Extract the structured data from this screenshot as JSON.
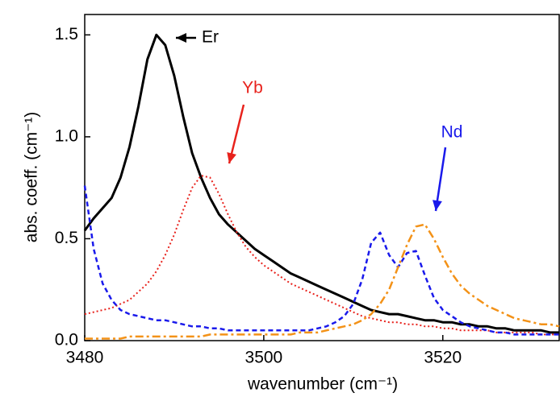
{
  "chart_data": {
    "type": "line",
    "x_label": "wavenumber (cm⁻¹)",
    "y_label": "abs. coeff. (cm⁻¹)",
    "x": [
      3480,
      3481,
      3482,
      3483,
      3484,
      3485,
      3486,
      3487,
      3488,
      3489,
      3490,
      3491,
      3492,
      3493,
      3494,
      3495,
      3496,
      3497,
      3498,
      3499,
      3500,
      3501,
      3502,
      3503,
      3504,
      3505,
      3506,
      3507,
      3508,
      3509,
      3510,
      3511,
      3512,
      3513,
      3514,
      3515,
      3516,
      3517,
      3518,
      3519,
      3520,
      3521,
      3522,
      3523,
      3524,
      3525,
      3526,
      3527,
      3528,
      3529,
      3530,
      3531,
      3532,
      3533
    ],
    "series": [
      {
        "name": "Er",
        "color": "#000000",
        "style": "solid",
        "values": [
          0.54,
          0.6,
          0.65,
          0.7,
          0.8,
          0.95,
          1.15,
          1.38,
          1.5,
          1.45,
          1.3,
          1.1,
          0.92,
          0.8,
          0.7,
          0.62,
          0.57,
          0.53,
          0.49,
          0.45,
          0.42,
          0.39,
          0.36,
          0.33,
          0.31,
          0.29,
          0.27,
          0.25,
          0.23,
          0.21,
          0.19,
          0.17,
          0.15,
          0.14,
          0.13,
          0.13,
          0.12,
          0.11,
          0.1,
          0.1,
          0.09,
          0.09,
          0.08,
          0.08,
          0.07,
          0.07,
          0.06,
          0.06,
          0.05,
          0.05,
          0.05,
          0.05,
          0.04,
          0.04
        ]
      },
      {
        "name": "Yb",
        "color": "#e8221c",
        "style": "dotted",
        "values": [
          0.13,
          0.14,
          0.15,
          0.16,
          0.18,
          0.2,
          0.24,
          0.28,
          0.34,
          0.42,
          0.52,
          0.64,
          0.75,
          0.81,
          0.8,
          0.72,
          0.62,
          0.53,
          0.46,
          0.41,
          0.37,
          0.34,
          0.31,
          0.28,
          0.26,
          0.24,
          0.22,
          0.2,
          0.18,
          0.16,
          0.14,
          0.12,
          0.11,
          0.1,
          0.09,
          0.09,
          0.08,
          0.08,
          0.07,
          0.07,
          0.06,
          0.06,
          0.05,
          0.05,
          0.05,
          0.05,
          0.04,
          0.04,
          0.04,
          0.04,
          0.04,
          0.03,
          0.03,
          0.03
        ]
      },
      {
        "name": "Nd",
        "color": "#1a1aeb",
        "style": "dashed",
        "values": [
          0.76,
          0.45,
          0.28,
          0.2,
          0.15,
          0.13,
          0.12,
          0.11,
          0.1,
          0.1,
          0.09,
          0.08,
          0.07,
          0.07,
          0.06,
          0.06,
          0.05,
          0.05,
          0.05,
          0.05,
          0.05,
          0.05,
          0.05,
          0.05,
          0.05,
          0.05,
          0.06,
          0.07,
          0.09,
          0.12,
          0.18,
          0.3,
          0.48,
          0.53,
          0.42,
          0.36,
          0.43,
          0.44,
          0.32,
          0.21,
          0.15,
          0.12,
          0.09,
          0.07,
          0.06,
          0.05,
          0.04,
          0.04,
          0.03,
          0.03,
          0.03,
          0.03,
          0.03,
          0.03
        ]
      },
      {
        "color": "#f39218",
        "style": "dashdot",
        "values": [
          0.01,
          0.01,
          0.01,
          0.01,
          0.01,
          0.02,
          0.02,
          0.02,
          0.02,
          0.02,
          0.02,
          0.02,
          0.02,
          0.02,
          0.03,
          0.03,
          0.03,
          0.03,
          0.03,
          0.03,
          0.03,
          0.03,
          0.03,
          0.03,
          0.04,
          0.04,
          0.04,
          0.05,
          0.06,
          0.07,
          0.08,
          0.1,
          0.13,
          0.18,
          0.25,
          0.36,
          0.47,
          0.56,
          0.57,
          0.5,
          0.41,
          0.33,
          0.27,
          0.23,
          0.2,
          0.17,
          0.15,
          0.13,
          0.11,
          0.1,
          0.09,
          0.08,
          0.08,
          0.07
        ]
      }
    ],
    "xlim": [
      3480,
      3533
    ],
    "xticks": [
      3480,
      3500,
      3520
    ],
    "ylim": [
      0,
      1.6
    ],
    "yticks": [
      {
        "value": 0,
        "label": "0.0"
      },
      0.5,
      {
        "value": 1,
        "label": "1.0"
      },
      1.5
    ],
    "grid": false
  }
}
